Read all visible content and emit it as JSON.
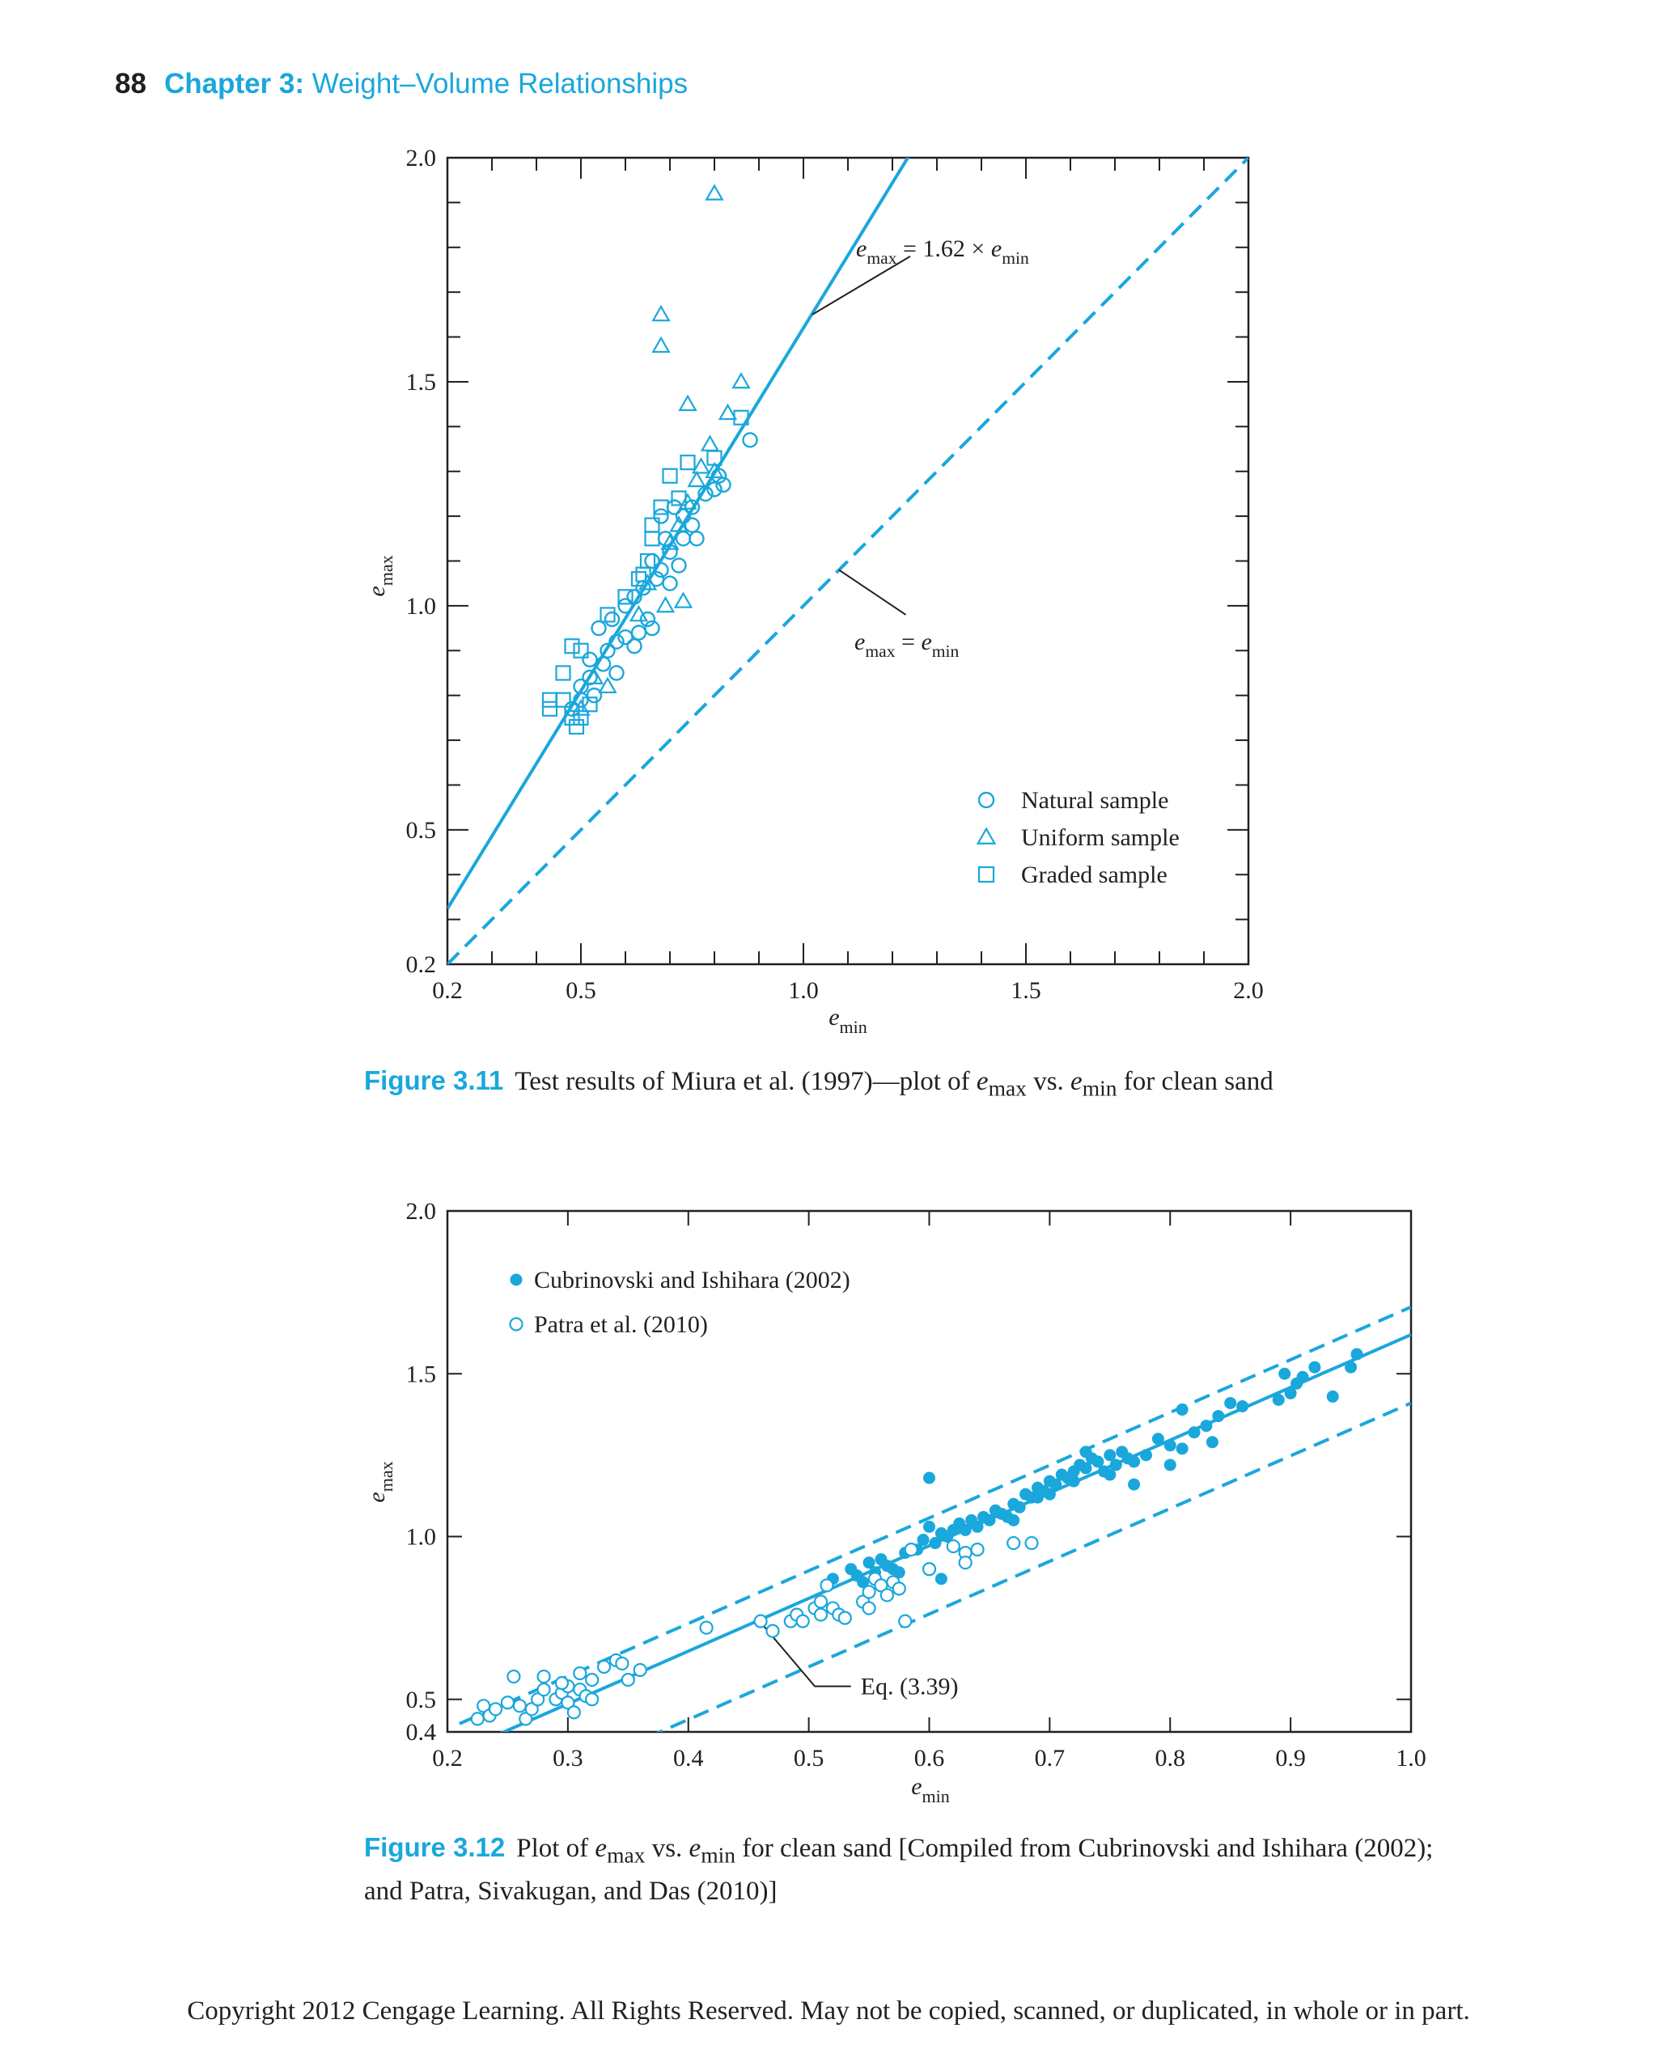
{
  "header": {
    "page_number": "88",
    "chapter_label": "Chapter 3:",
    "chapter_title": "Weight–Volume Relationships"
  },
  "figure_3_11": {
    "label": "Figure 3.11",
    "caption_pre": "Test results of Miura et al. (1997)—plot of ",
    "caption_mid": " vs. ",
    "caption_post": " for clean sand"
  },
  "figure_3_12": {
    "label": "Figure 3.12",
    "caption_pre": "Plot of ",
    "caption_mid": " vs. ",
    "caption_post1": " for clean sand [Compiled from Cubrinovski and Ishihara (2002);",
    "caption_line2": "and Patra, Sivakugan, and Das (2010)]"
  },
  "copyright": "Copyright 2012 Cengage Learning. All Rights Reserved. May not be copied, scanned, or duplicated, in whole or in part.",
  "symbols": {
    "e": "e",
    "max": "max",
    "min": "min"
  },
  "colors": {
    "accent": "#1aa7dc",
    "text": "#231f20"
  },
  "chart_data": [
    {
      "type": "scatter",
      "xlabel": "e_min",
      "ylabel": "e_max",
      "xlim": [
        0.2,
        2.0
      ],
      "ylim": [
        0.2,
        2.0
      ],
      "x_ticks": [
        "0.2",
        "0.5",
        "1.0",
        "1.5",
        "2.0"
      ],
      "y_ticks": [
        "0.2",
        "0.5",
        "1.0",
        "1.5",
        "2.0"
      ],
      "legend_position": "bottom-right",
      "lines": [
        {
          "label": "e_max = 1.62 × e_min",
          "slope": 1.62,
          "intercept": 0,
          "style": "solid",
          "label_parts": [
            "e",
            "max",
            " = 1.62 × ",
            "e",
            "min"
          ]
        },
        {
          "label": "e_max = e_min",
          "slope": 1.0,
          "intercept": 0,
          "style": "dashed",
          "label_parts": [
            "e",
            "max",
            " = ",
            "e",
            "min"
          ]
        }
      ],
      "series": [
        {
          "name": "Natural sample",
          "marker": "circle-open",
          "points": [
            [
              0.48,
              0.77
            ],
            [
              0.5,
              0.79
            ],
            [
              0.5,
              0.82
            ],
            [
              0.52,
              0.84
            ],
            [
              0.53,
              0.8
            ],
            [
              0.55,
              0.87
            ],
            [
              0.56,
              0.9
            ],
            [
              0.58,
              0.85
            ],
            [
              0.58,
              0.92
            ],
            [
              0.6,
              0.93
            ],
            [
              0.62,
              0.91
            ],
            [
              0.63,
              0.94
            ],
            [
              0.65,
              0.97
            ],
            [
              0.66,
              0.95
            ],
            [
              0.52,
              0.88
            ],
            [
              0.54,
              0.95
            ],
            [
              0.57,
              0.97
            ],
            [
              0.6,
              1.0
            ],
            [
              0.62,
              1.02
            ],
            [
              0.64,
              1.04
            ],
            [
              0.67,
              1.06
            ],
            [
              0.68,
              1.08
            ],
            [
              0.7,
              1.05
            ],
            [
              0.72,
              1.09
            ],
            [
              0.7,
              1.12
            ],
            [
              0.73,
              1.15
            ],
            [
              0.75,
              1.18
            ],
            [
              0.76,
              1.15
            ],
            [
              0.73,
              1.2
            ],
            [
              0.71,
              1.22
            ],
            [
              0.68,
              1.2
            ],
            [
              0.75,
              1.22
            ],
            [
              0.78,
              1.25
            ],
            [
              0.8,
              1.26
            ],
            [
              0.82,
              1.27
            ],
            [
              0.81,
              1.29
            ],
            [
              0.88,
              1.37
            ],
            [
              0.66,
              1.1
            ],
            [
              0.69,
              1.15
            ]
          ]
        },
        {
          "name": "Uniform sample",
          "marker": "triangle-open",
          "points": [
            [
              0.8,
              1.92
            ],
            [
              0.68,
              1.65
            ],
            [
              0.68,
              1.58
            ],
            [
              0.74,
              1.45
            ],
            [
              0.86,
              1.5
            ],
            [
              0.83,
              1.43
            ],
            [
              0.79,
              1.36
            ],
            [
              0.77,
              1.31
            ],
            [
              0.76,
              1.28
            ],
            [
              0.8,
              1.3
            ],
            [
              0.72,
              1.18
            ],
            [
              0.7,
              1.14
            ],
            [
              0.65,
              1.05
            ],
            [
              0.69,
              1.0
            ],
            [
              0.73,
              1.01
            ],
            [
              0.63,
              0.98
            ],
            [
              0.53,
              0.84
            ],
            [
              0.56,
              0.82
            ],
            [
              0.5,
              0.77
            ],
            [
              0.74,
              1.23
            ]
          ]
        },
        {
          "name": "Graded sample",
          "marker": "square-open",
          "points": [
            [
              0.43,
              0.79
            ],
            [
              0.43,
              0.77
            ],
            [
              0.46,
              0.79
            ],
            [
              0.48,
              0.75
            ],
            [
              0.49,
              0.73
            ],
            [
              0.5,
              0.75
            ],
            [
              0.52,
              0.78
            ],
            [
              0.46,
              0.85
            ],
            [
              0.48,
              0.91
            ],
            [
              0.5,
              0.9
            ],
            [
              0.56,
              0.98
            ],
            [
              0.6,
              1.02
            ],
            [
              0.63,
              1.06
            ],
            [
              0.65,
              1.1
            ],
            [
              0.66,
              1.15
            ],
            [
              0.66,
              1.18
            ],
            [
              0.68,
              1.22
            ],
            [
              0.7,
              1.29
            ],
            [
              0.74,
              1.32
            ],
            [
              0.8,
              1.33
            ],
            [
              0.86,
              1.42
            ],
            [
              0.72,
              1.24
            ],
            [
              0.64,
              1.07
            ]
          ]
        }
      ]
    },
    {
      "type": "scatter",
      "xlabel": "e_min",
      "ylabel": "e_max",
      "xlim": [
        0.2,
        1.0
      ],
      "ylim": [
        0.4,
        2.0
      ],
      "x_ticks": [
        "0.2",
        "0.3",
        "0.4",
        "0.5",
        "0.6",
        "0.7",
        "0.8",
        "0.9",
        "1.0"
      ],
      "y_ticks": [
        "0.4",
        "0.5",
        "1.0",
        "1.5",
        "2.0"
      ],
      "legend_position": "top-left",
      "annotation": "Eq. (3.39)",
      "lines": [
        {
          "label": "Eq. (3.39)",
          "slope": 1.62,
          "intercept": 0.0,
          "style": "solid",
          "x_range": [
            0.24,
            1.0
          ]
        },
        {
          "label": "",
          "slope": 1.62,
          "intercept": 0.085,
          "style": "dashed",
          "x_range": [
            0.21,
            1.0
          ]
        },
        {
          "label": "",
          "slope": 1.62,
          "intercept": -0.21,
          "style": "dashed",
          "x_range": [
            0.29,
            1.0
          ]
        }
      ],
      "series": [
        {
          "name": "Cubrinovski and Ishihara (2002)",
          "marker": "circle-filled",
          "points": [
            [
              0.535,
              0.9
            ],
            [
              0.54,
              0.88
            ],
            [
              0.545,
              0.86
            ],
            [
              0.55,
              0.92
            ],
            [
              0.555,
              0.89
            ],
            [
              0.56,
              0.93
            ],
            [
              0.565,
              0.91
            ],
            [
              0.57,
              0.9
            ],
            [
              0.575,
              0.89
            ],
            [
              0.58,
              0.95
            ],
            [
              0.59,
              0.96
            ],
            [
              0.595,
              0.99
            ],
            [
              0.6,
              1.03
            ],
            [
              0.605,
              0.98
            ],
            [
              0.61,
              1.01
            ],
            [
              0.615,
              1.0
            ],
            [
              0.62,
              1.02
            ],
            [
              0.625,
              1.04
            ],
            [
              0.63,
              1.02
            ],
            [
              0.635,
              1.05
            ],
            [
              0.64,
              1.03
            ],
            [
              0.645,
              1.06
            ],
            [
              0.65,
              1.05
            ],
            [
              0.655,
              1.08
            ],
            [
              0.66,
              1.07
            ],
            [
              0.665,
              1.06
            ],
            [
              0.67,
              1.1
            ],
            [
              0.675,
              1.09
            ],
            [
              0.68,
              1.13
            ],
            [
              0.685,
              1.12
            ],
            [
              0.69,
              1.15
            ],
            [
              0.695,
              1.14
            ],
            [
              0.7,
              1.17
            ],
            [
              0.705,
              1.16
            ],
            [
              0.71,
              1.19
            ],
            [
              0.715,
              1.18
            ],
            [
              0.72,
              1.2
            ],
            [
              0.725,
              1.22
            ],
            [
              0.73,
              1.21
            ],
            [
              0.735,
              1.24
            ],
            [
              0.74,
              1.23
            ],
            [
              0.745,
              1.2
            ],
            [
              0.75,
              1.25
            ],
            [
              0.755,
              1.22
            ],
            [
              0.76,
              1.26
            ],
            [
              0.765,
              1.24
            ],
            [
              0.77,
              1.23
            ],
            [
              0.78,
              1.25
            ],
            [
              0.79,
              1.3
            ],
            [
              0.8,
              1.28
            ],
            [
              0.81,
              1.27
            ],
            [
              0.82,
              1.32
            ],
            [
              0.83,
              1.34
            ],
            [
              0.835,
              1.29
            ],
            [
              0.84,
              1.37
            ],
            [
              0.85,
              1.41
            ],
            [
              0.86,
              1.4
            ],
            [
              0.895,
              1.5
            ],
            [
              0.9,
              1.44
            ],
            [
              0.905,
              1.47
            ],
            [
              0.91,
              1.49
            ],
            [
              0.92,
              1.52
            ],
            [
              0.935,
              1.43
            ],
            [
              0.95,
              1.52
            ],
            [
              0.955,
              1.56
            ],
            [
              0.6,
              1.18
            ],
            [
              0.61,
              0.87
            ],
            [
              0.69,
              1.12
            ],
            [
              0.72,
              1.17
            ],
            [
              0.75,
              1.19
            ],
            [
              0.77,
              1.16
            ],
            [
              0.8,
              1.22
            ],
            [
              0.73,
              1.26
            ],
            [
              0.81,
              1.39
            ],
            [
              0.89,
              1.42
            ],
            [
              0.52,
              0.87
            ],
            [
              0.67,
              1.05
            ],
            [
              0.7,
              1.13
            ]
          ]
        },
        {
          "name": "Patra et al. (2010)",
          "marker": "circle-open",
          "points": [
            [
              0.225,
              0.44
            ],
            [
              0.23,
              0.48
            ],
            [
              0.235,
              0.45
            ],
            [
              0.24,
              0.47
            ],
            [
              0.25,
              0.49
            ],
            [
              0.26,
              0.48
            ],
            [
              0.265,
              0.44
            ],
            [
              0.27,
              0.47
            ],
            [
              0.275,
              0.5
            ],
            [
              0.28,
              0.53
            ],
            [
              0.29,
              0.5
            ],
            [
              0.295,
              0.52
            ],
            [
              0.3,
              0.54
            ],
            [
              0.3,
              0.49
            ],
            [
              0.305,
              0.46
            ],
            [
              0.31,
              0.53
            ],
            [
              0.315,
              0.51
            ],
            [
              0.32,
              0.56
            ],
            [
              0.33,
              0.6
            ],
            [
              0.34,
              0.62
            ],
            [
              0.35,
              0.56
            ],
            [
              0.36,
              0.59
            ],
            [
              0.32,
              0.5
            ],
            [
              0.255,
              0.57
            ],
            [
              0.28,
              0.57
            ],
            [
              0.295,
              0.55
            ],
            [
              0.31,
              0.58
            ],
            [
              0.345,
              0.61
            ],
            [
              0.415,
              0.72
            ],
            [
              0.46,
              0.74
            ],
            [
              0.47,
              0.71
            ],
            [
              0.485,
              0.74
            ],
            [
              0.49,
              0.76
            ],
            [
              0.495,
              0.74
            ],
            [
              0.505,
              0.78
            ],
            [
              0.51,
              0.8
            ],
            [
              0.51,
              0.76
            ],
            [
              0.515,
              0.85
            ],
            [
              0.52,
              0.78
            ],
            [
              0.525,
              0.76
            ],
            [
              0.53,
              0.75
            ],
            [
              0.545,
              0.8
            ],
            [
              0.55,
              0.83
            ],
            [
              0.555,
              0.87
            ],
            [
              0.56,
              0.85
            ],
            [
              0.565,
              0.82
            ],
            [
              0.57,
              0.86
            ],
            [
              0.575,
              0.84
            ],
            [
              0.58,
              0.74
            ],
            [
              0.585,
              0.96
            ],
            [
              0.6,
              0.9
            ],
            [
              0.62,
              0.97
            ],
            [
              0.63,
              0.95
            ],
            [
              0.64,
              0.96
            ],
            [
              0.63,
              0.92
            ],
            [
              0.67,
              0.98
            ],
            [
              0.685,
              0.98
            ],
            [
              0.55,
              0.78
            ]
          ]
        }
      ]
    }
  ]
}
